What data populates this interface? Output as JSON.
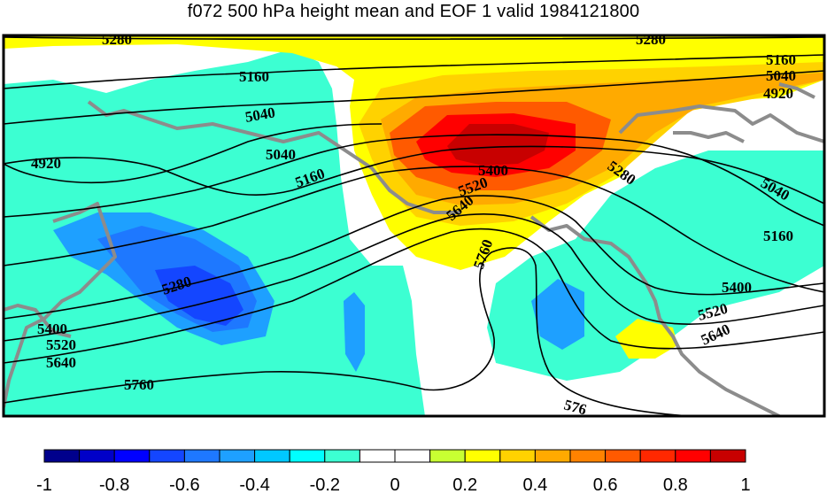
{
  "title": "f072 500 hPa height mean and EOF 1 valid 1984121800",
  "map": {
    "contour_labels": [
      "5280",
      "5280",
      "5160",
      "5160",
      "5040",
      "5040",
      "4920",
      "4920",
      "5040",
      "5160",
      "5400",
      "5520",
      "5640",
      "5280",
      "5040",
      "5160",
      "5760",
      "5280",
      "5400",
      "5520",
      "5640",
      "5400",
      "5520",
      "5640",
      "5760",
      "576"
    ]
  },
  "colorbar": {
    "colors": [
      "#00008c",
      "#0000c8",
      "#0000ff",
      "#1446ff",
      "#1e78ff",
      "#1ea0ff",
      "#00c8ff",
      "#00ffff",
      "#3cffd2",
      "#ffffff",
      "#ffffff",
      "#c8ff32",
      "#ffff00",
      "#ffd200",
      "#ffaa00",
      "#ff8200",
      "#ff5a00",
      "#ff2800",
      "#ff0000",
      "#c80000"
    ],
    "ticks": [
      "-1",
      "-0.8",
      "-0.6",
      "-0.4",
      "-0.2",
      "0",
      "0.2",
      "0.4",
      "0.6",
      "0.8",
      "1"
    ]
  }
}
